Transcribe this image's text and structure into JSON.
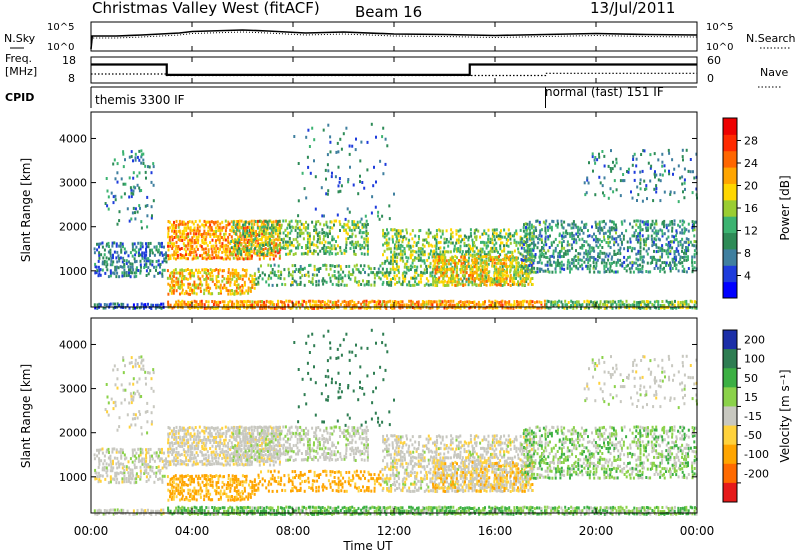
{
  "header": {
    "title": "Christmas Valley West (fitACF)",
    "beam": "Beam 16",
    "date": "13/Jul/2011"
  },
  "left_labels": {
    "nsky": "N.Sky",
    "freq_line1": "Freq.",
    "freq_line2": "[MHz]",
    "cpid": "CPID"
  },
  "right_labels": {
    "nsearch": "N.Search",
    "nave": "Nave"
  },
  "axis_labels": {
    "power_ylabel": "Slant Range [km]",
    "velocity_ylabel": "Slant Range [km]",
    "xlabel": "Time UT",
    "power_colorbar_label": "Power [dB]",
    "velocity_colorbar_label": "Velocity [m s⁻¹]"
  },
  "chart_data": {
    "type": "heatmap",
    "time_axis": {
      "range_hours": [
        0,
        24
      ],
      "ticks": [
        "00:00",
        "04:00",
        "08:00",
        "12:00",
        "16:00",
        "20:00",
        "00:00"
      ],
      "tick_hours": [
        0,
        4,
        8,
        12,
        16,
        20,
        24
      ]
    },
    "slant_range_axis": {
      "range_km": [
        180,
        4600
      ],
      "ticks": [
        "1000",
        "2000",
        "3000",
        "4000"
      ],
      "tick_km": [
        1000,
        2000,
        3000,
        4000
      ]
    },
    "noise_panel": {
      "left_ticks": [
        "10^5",
        "10^0"
      ],
      "right_ticks": [
        "10^5",
        "10^0"
      ],
      "noise_sky_log_level": [
        [
          0,
          0
        ],
        [
          0.05,
          2.6
        ],
        [
          1.0,
          2.6
        ],
        [
          2.0,
          2.8
        ],
        [
          3.5,
          3.2
        ],
        [
          4.0,
          3.5
        ],
        [
          6.0,
          3.8
        ],
        [
          7.0,
          3.6
        ],
        [
          8.5,
          3.2
        ],
        [
          10.0,
          3.4
        ],
        [
          12.0,
          3.0
        ],
        [
          14.0,
          2.9
        ],
        [
          16.0,
          2.7
        ],
        [
          18.0,
          2.9
        ],
        [
          20.0,
          3.1
        ],
        [
          22.0,
          2.9
        ],
        [
          24.0,
          2.8
        ]
      ]
    },
    "freq_panel": {
      "left_ticks": [
        "18",
        "8"
      ],
      "right_ticks": [
        "60",
        "0"
      ],
      "freq_mhz": [
        [
          0,
          15.5
        ],
        [
          3.0,
          15.5
        ],
        [
          3.0,
          10.8
        ],
        [
          15.0,
          10.8
        ],
        [
          15.0,
          15.5
        ],
        [
          24.0,
          15.5
        ]
      ],
      "nave": [
        [
          0,
          19
        ],
        [
          3.0,
          19
        ],
        [
          3.0,
          15
        ],
        [
          18.0,
          15
        ],
        [
          18.0,
          21
        ],
        [
          24.0,
          21
        ]
      ]
    },
    "cpid_segments": [
      {
        "label": "themis 3300 IF",
        "start_hour": 0,
        "end_hour": 18.0
      },
      {
        "label": "normal (fast) 151 IF",
        "start_hour": 18.0,
        "end_hour": 24
      }
    ],
    "power_colorbar": {
      "label": "Power [dB]",
      "ticks": [
        "28",
        "24",
        "20",
        "16",
        "12",
        "8",
        "4"
      ],
      "tick_values": [
        28,
        24,
        20,
        16,
        12,
        8,
        4
      ],
      "range_db": [
        0,
        32
      ],
      "colors": [
        "#0000ff",
        "#1e3cdc",
        "#3f7f9f",
        "#2e8b57",
        "#3cb371",
        "#9acd32",
        "#ffd700",
        "#ffa500",
        "#ff6600",
        "#ff2a00",
        "#ee0000"
      ]
    },
    "velocity_colorbar": {
      "label": "Velocity [m s⁻¹]",
      "ticks": [
        "200",
        "100",
        "50",
        "15",
        "-15",
        "-50",
        "-100",
        "-200"
      ],
      "tick_values": [
        200,
        100,
        50,
        15,
        -15,
        -50,
        -100,
        -200
      ],
      "bands": [
        {
          "from": 150,
          "to": 250,
          "color": "#1c2fa8"
        },
        {
          "from": 75,
          "to": 150,
          "color": "#2e7d52"
        },
        {
          "from": 30,
          "to": 75,
          "color": "#3cb043"
        },
        {
          "from": 15,
          "to": 30,
          "color": "#8bd24a"
        },
        {
          "from": -15,
          "to": 15,
          "color": "#c8c8c0"
        },
        {
          "from": -30,
          "to": -15,
          "color": "#ffd23c"
        },
        {
          "from": -75,
          "to": -30,
          "color": "#ffa500"
        },
        {
          "from": -150,
          "to": -75,
          "color": "#ff6a00"
        },
        {
          "from": -250,
          "to": -150,
          "color": "#e61a1a"
        }
      ]
    },
    "scatter_regions": [
      {
        "t0": 0.1,
        "t1": 2.9,
        "r0": 180,
        "r1": 320,
        "density": 0.7,
        "power": 6,
        "velocity": 0
      },
      {
        "t0": 0.1,
        "t1": 3.0,
        "r0": 900,
        "r1": 1700,
        "density": 0.55,
        "power": 8,
        "velocity": 0
      },
      {
        "t0": 0.5,
        "t1": 2.5,
        "r0": 2000,
        "r1": 3800,
        "density": 0.15,
        "power": 9,
        "velocity": 0
      },
      {
        "t0": 3.0,
        "t1": 7.5,
        "r0": 1300,
        "r1": 2200,
        "density": 0.75,
        "power": 22,
        "velocity": -5
      },
      {
        "t0": 3.0,
        "t1": 6.5,
        "r0": 500,
        "r1": 1100,
        "density": 0.6,
        "power": 20,
        "velocity": -40
      },
      {
        "t0": 5.5,
        "t1": 11.0,
        "r0": 1400,
        "r1": 2200,
        "density": 0.5,
        "power": 14,
        "velocity": 5
      },
      {
        "t0": 6.5,
        "t1": 11.5,
        "r0": 700,
        "r1": 1200,
        "density": 0.4,
        "power": 13,
        "velocity": -40
      },
      {
        "t0": 3.0,
        "t1": 18.0,
        "r0": 180,
        "r1": 380,
        "density": 0.85,
        "power": 22,
        "velocity": 30
      },
      {
        "t0": 18.0,
        "t1": 24,
        "r0": 180,
        "r1": 380,
        "density": 0.8,
        "power": 14,
        "velocity": 25
      },
      {
        "t0": 11.5,
        "t1": 17.5,
        "r0": 700,
        "r1": 2000,
        "density": 0.55,
        "power": 15,
        "velocity": -2
      },
      {
        "t0": 13.5,
        "t1": 17.5,
        "r0": 700,
        "r1": 1400,
        "density": 0.6,
        "power": 20,
        "velocity": -20
      },
      {
        "t0": 17.0,
        "t1": 24,
        "r0": 1000,
        "r1": 2200,
        "density": 0.5,
        "power": 10,
        "velocity": 20
      },
      {
        "t0": 19.5,
        "t1": 24,
        "r0": 2600,
        "r1": 3800,
        "density": 0.15,
        "power": 8,
        "velocity": 0
      },
      {
        "t0": 8.0,
        "t1": 12.0,
        "r0": 2200,
        "r1": 4400,
        "density": 0.06,
        "power": 8,
        "velocity": 120
      }
    ]
  }
}
